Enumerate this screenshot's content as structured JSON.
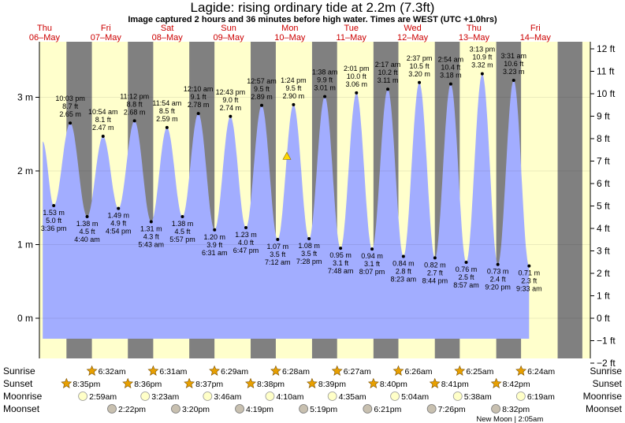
{
  "header": {
    "title": "Lagide: rising  ordinary tide at 2.2m (7.3ft)",
    "subtitle": "Image captured 2 hours and 36 minutes before high water. Times are WEST (UTC +1.0hrs)"
  },
  "colors": {
    "day": "#ffffcc",
    "night": "#808080",
    "water": "#a2adff",
    "day_label": "#cc0000",
    "current_marker": "#ffd700"
  },
  "chart_data": {
    "type": "area",
    "title": "Lagide: rising  ordinary tide at 2.2m (7.3ft)",
    "subtitle": "Image captured 2 hours and 36 minutes before high water. Times are WEST (UTC +1.0hrs)",
    "x_unit": "hours after 00:00 Thu 06-May",
    "x_range": [
      10,
      225.5
    ],
    "ylim": [
      -0.75,
      3.8
    ],
    "left_axis": {
      "unit": "m",
      "ticks": [
        0,
        1,
        2,
        3
      ],
      "labels": [
        "0 m",
        "1 m",
        "2 m",
        "3 m"
      ]
    },
    "right_axis": {
      "unit": "ft",
      "ticks": [
        -2,
        -1,
        0,
        1,
        2,
        3,
        4,
        5,
        6,
        7,
        8,
        9,
        10,
        11,
        12
      ],
      "labels": [
        "−2 ft",
        "−1 ft",
        "0 ft",
        "1 ft",
        "2 ft",
        "3 ft",
        "4 ft",
        "5 ft",
        "6 ft",
        "7 ft",
        "8 ft",
        "9 ft",
        "10 ft",
        "11 ft",
        "12 ft"
      ]
    },
    "days": [
      {
        "weekday": "Thu",
        "date": "06–May",
        "x": 12
      },
      {
        "weekday": "Fri",
        "date": "07–May",
        "x": 36
      },
      {
        "weekday": "Sat",
        "date": "08–May",
        "x": 60
      },
      {
        "weekday": "Sun",
        "date": "09–May",
        "x": 84
      },
      {
        "weekday": "Mon",
        "date": "10–May",
        "x": 108
      },
      {
        "weekday": "Tue",
        "date": "11–May",
        "x": 132
      },
      {
        "weekday": "Wed",
        "date": "12–May",
        "x": 156
      },
      {
        "weekday": "Thu",
        "date": "13–May",
        "x": 180
      },
      {
        "weekday": "Fri",
        "date": "14–May",
        "x": 204
      }
    ],
    "nights": [
      [
        20.58,
        30.53
      ],
      [
        44.6,
        54.52
      ],
      [
        68.62,
        78.48
      ],
      [
        92.63,
        102.47
      ],
      [
        116.65,
        126.45
      ],
      [
        140.67,
        150.43
      ],
      [
        164.68,
        174.42
      ],
      [
        188.7,
        198.4
      ],
      [
        212.72,
        222.38
      ]
    ],
    "start_level": 2.4,
    "tides": [
      {
        "type": "low",
        "x": 15.6,
        "time": "3:36 pm",
        "m": "1.53 m",
        "ft": "5.0 ft",
        "h": 1.53
      },
      {
        "type": "high",
        "x": 22.05,
        "time": "10:03 pm",
        "m": "2.65 m",
        "ft": "8.7 ft",
        "h": 2.65
      },
      {
        "type": "low",
        "x": 28.67,
        "time": "4:40 am",
        "m": "1.38 m",
        "ft": "4.5 ft",
        "h": 1.38
      },
      {
        "type": "high",
        "x": 34.9,
        "time": "10:54 am",
        "m": "2.47 m",
        "ft": "8.1 ft",
        "h": 2.47
      },
      {
        "type": "low",
        "x": 40.9,
        "time": "4:54 pm",
        "m": "1.49 m",
        "ft": "4.9 ft",
        "h": 1.49
      },
      {
        "type": "high",
        "x": 47.2,
        "time": "11:12 pm",
        "m": "2.68 m",
        "ft": "8.8 ft",
        "h": 2.68
      },
      {
        "type": "low",
        "x": 53.72,
        "time": "5:43 am",
        "m": "1.31 m",
        "ft": "4.3 ft",
        "h": 1.31
      },
      {
        "type": "high",
        "x": 59.9,
        "time": "11:54 am",
        "m": "2.59 m",
        "ft": "8.5 ft",
        "h": 2.59
      },
      {
        "type": "low",
        "x": 65.95,
        "time": "5:57 pm",
        "m": "1.38 m",
        "ft": "4.5 ft",
        "h": 1.38
      },
      {
        "type": "high",
        "x": 72.17,
        "time": "12:10 am",
        "m": "2.78 m",
        "ft": "9.1 ft",
        "h": 2.78
      },
      {
        "type": "low",
        "x": 78.52,
        "time": "6:31 am",
        "m": "1.20 m",
        "ft": "3.9 ft",
        "h": 1.2
      },
      {
        "type": "high",
        "x": 84.72,
        "time": "12:43 pm",
        "m": "2.74 m",
        "ft": "9.0 ft",
        "h": 2.74
      },
      {
        "type": "low",
        "x": 90.78,
        "time": "6:47 pm",
        "m": "1.23 m",
        "ft": "4.0 ft",
        "h": 1.23
      },
      {
        "type": "high",
        "x": 96.95,
        "time": "12:57 am",
        "m": "2.89 m",
        "ft": "9.5 ft",
        "h": 2.89
      },
      {
        "type": "low",
        "x": 103.2,
        "time": "7:12 am",
        "m": "1.07 m",
        "ft": "3.5 ft",
        "h": 1.07
      },
      {
        "type": "high",
        "x": 109.4,
        "time": "1:24 pm",
        "m": "2.90 m",
        "ft": "9.5 ft",
        "h": 2.9
      },
      {
        "type": "low",
        "x": 115.47,
        "time": "7:28 pm",
        "m": "1.08 m",
        "ft": "3.5 ft",
        "h": 1.08
      },
      {
        "type": "high",
        "x": 121.63,
        "time": "1:38 am",
        "m": "3.01 m",
        "ft": "9.9 ft",
        "h": 3.01
      },
      {
        "type": "low",
        "x": 127.8,
        "time": "7:48 am",
        "m": "0.95 m",
        "ft": "3.1 ft",
        "h": 0.95
      },
      {
        "type": "high",
        "x": 134.02,
        "time": "2:01 pm",
        "m": "3.06 m",
        "ft": "10.0 ft",
        "h": 3.06
      },
      {
        "type": "low",
        "x": 140.12,
        "time": "8:07 pm",
        "m": "0.94 m",
        "ft": "3.1 ft",
        "h": 0.94
      },
      {
        "type": "high",
        "x": 146.28,
        "time": "2:17 am",
        "m": "3.11 m",
        "ft": "10.2 ft",
        "h": 3.11
      },
      {
        "type": "low",
        "x": 152.38,
        "time": "8:23 am",
        "m": "0.84 m",
        "ft": "2.8 ft",
        "h": 0.84
      },
      {
        "type": "high",
        "x": 158.62,
        "time": "2:37 pm",
        "m": "3.20 m",
        "ft": "10.5 ft",
        "h": 3.2
      },
      {
        "type": "low",
        "x": 164.73,
        "time": "8:44 pm",
        "m": "0.82 m",
        "ft": "2.7 ft",
        "h": 0.82
      },
      {
        "type": "high",
        "x": 170.9,
        "time": "2:54 am",
        "m": "3.18 m",
        "ft": "10.4 ft",
        "h": 3.18
      },
      {
        "type": "low",
        "x": 176.95,
        "time": "8:57 am",
        "m": "0.76 m",
        "ft": "2.5 ft",
        "h": 0.76
      },
      {
        "type": "high",
        "x": 183.22,
        "time": "3:13 pm",
        "m": "3.32 m",
        "ft": "10.9 ft",
        "h": 3.32
      },
      {
        "type": "low",
        "x": 189.33,
        "time": "9:20 pm",
        "m": "0.73 m",
        "ft": "2.4 ft",
        "h": 0.73
      },
      {
        "type": "high",
        "x": 195.52,
        "time": "3:31 am",
        "m": "3.23 m",
        "ft": "10.6 ft",
        "h": 3.23
      },
      {
        "type": "low",
        "x": 201.55,
        "time": "9:33 am",
        "m": "0.71 m",
        "ft": "2.3 ft",
        "h": 0.71
      }
    ],
    "current": {
      "x": 106.8,
      "h": 2.2
    },
    "astro": {
      "row_labels": [
        "Sunrise",
        "Sunset",
        "Moonrise",
        "Moonset"
      ],
      "sunrise": [
        {
          "x": 30.53,
          "label": "6:32am"
        },
        {
          "x": 54.52,
          "label": "6:31am"
        },
        {
          "x": 78.48,
          "label": "6:29am"
        },
        {
          "x": 102.47,
          "label": "6:28am"
        },
        {
          "x": 126.45,
          "label": "6:27am"
        },
        {
          "x": 150.43,
          "label": "6:26am"
        },
        {
          "x": 174.42,
          "label": "6:25am"
        },
        {
          "x": 198.4,
          "label": "6:24am"
        }
      ],
      "sunset": [
        {
          "x": 20.58,
          "label": "8:35pm"
        },
        {
          "x": 44.6,
          "label": "8:36pm"
        },
        {
          "x": 68.62,
          "label": "8:37pm"
        },
        {
          "x": 92.63,
          "label": "8:38pm"
        },
        {
          "x": 116.65,
          "label": "8:39pm"
        },
        {
          "x": 140.67,
          "label": "8:40pm"
        },
        {
          "x": 164.68,
          "label": "8:41pm"
        },
        {
          "x": 188.7,
          "label": "8:42pm"
        }
      ],
      "moonrise": [
        {
          "x": 26.98,
          "label": "2:59am"
        },
        {
          "x": 51.38,
          "label": "3:23am"
        },
        {
          "x": 75.77,
          "label": "3:46am"
        },
        {
          "x": 100.17,
          "label": "4:10am"
        },
        {
          "x": 124.58,
          "label": "4:35am"
        },
        {
          "x": 149.07,
          "label": "5:04am"
        },
        {
          "x": 173.63,
          "label": "5:38am"
        },
        {
          "x": 198.32,
          "label": "6:19am"
        }
      ],
      "moonset": [
        {
          "x": 38.37,
          "label": "2:22pm"
        },
        {
          "x": 63.33,
          "label": "3:20pm"
        },
        {
          "x": 88.32,
          "label": "4:19pm"
        },
        {
          "x": 113.32,
          "label": "5:19pm"
        },
        {
          "x": 138.35,
          "label": "6:21pm"
        },
        {
          "x": 163.43,
          "label": "7:26pm"
        },
        {
          "x": 188.53,
          "label": "8:32pm"
        }
      ],
      "new_moon": {
        "x": 194,
        "label": "New Moon | 2:05am"
      }
    }
  }
}
